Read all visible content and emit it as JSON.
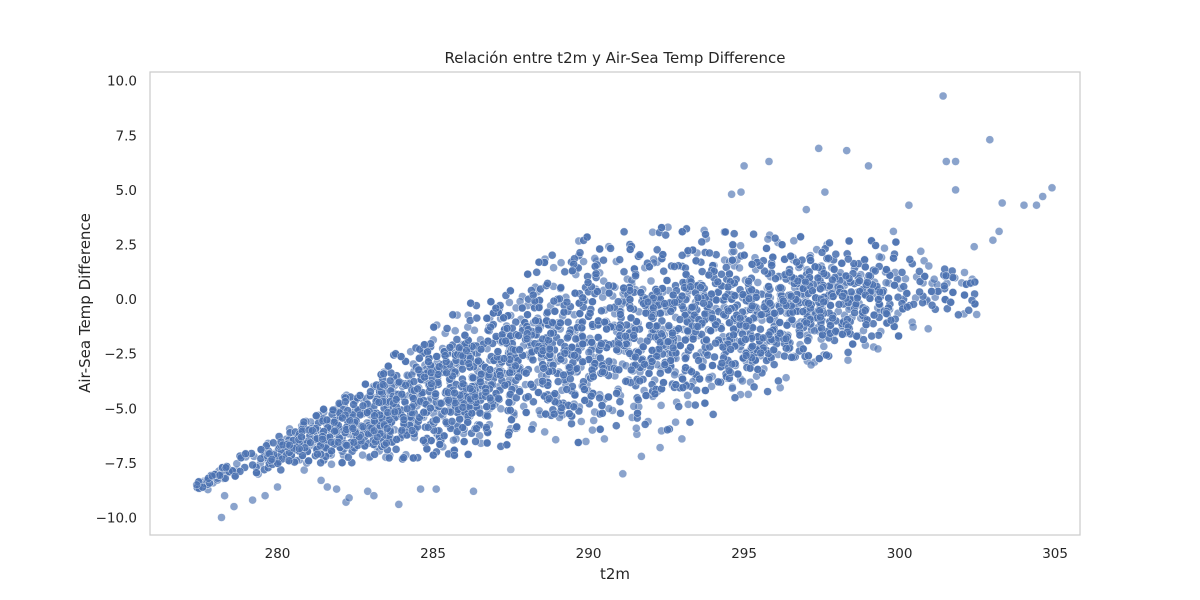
{
  "chart_data": {
    "type": "scatter",
    "title": "Relación entre t2m y Air-Sea Temp Difference",
    "xlabel": "t2m",
    "ylabel": "Air-Sea Temp Difference",
    "xlim": [
      275.9,
      305.8
    ],
    "ylim": [
      -10.8,
      10.4
    ],
    "xticks": [
      280,
      285,
      290,
      295,
      300,
      305
    ],
    "xtick_labels": [
      "280",
      "285",
      "290",
      "295",
      "300",
      "305"
    ],
    "yticks": [
      -10,
      -7.5,
      -5,
      -2.5,
      0,
      2.5,
      5,
      7.5,
      10
    ],
    "ytick_labels": [
      "−10.0",
      "−7.5",
      "−5.0",
      "−2.5",
      "0.0",
      "2.5",
      "5.0",
      "7.5",
      "10.0"
    ],
    "grid": false,
    "marker_color": "#4c72b0",
    "marker_alpha": 0.65,
    "marker_edgecolor": "#ffffff",
    "band": {
      "x": [
        277.4,
        280,
        282.5,
        285,
        287.5,
        290,
        292.5,
        295,
        297.5,
        300,
        302.5
      ],
      "upper": [
        -8.3,
        -6.2,
        -4.0,
        -1.5,
        0.8,
        2.7,
        3.1,
        2.8,
        2.6,
        2.4,
        1.8
      ],
      "lower": [
        -8.8,
        -7.8,
        -7.3,
        -7.0,
        -6.8,
        -6.3,
        -5.8,
        -4.6,
        -3.0,
        -1.8,
        -0.6
      ]
    },
    "outliers": [
      {
        "x": 277.4,
        "y": -8.5
      },
      {
        "x": 277.9,
        "y": -8.1
      },
      {
        "x": 278.2,
        "y": -10.0
      },
      {
        "x": 278.3,
        "y": -9.0
      },
      {
        "x": 278.6,
        "y": -9.5
      },
      {
        "x": 279.2,
        "y": -9.2
      },
      {
        "x": 279.6,
        "y": -9.0
      },
      {
        "x": 280.0,
        "y": -8.6
      },
      {
        "x": 281.4,
        "y": -8.3
      },
      {
        "x": 281.6,
        "y": -8.6
      },
      {
        "x": 281.9,
        "y": -8.7
      },
      {
        "x": 282.2,
        "y": -9.3
      },
      {
        "x": 282.3,
        "y": -9.1
      },
      {
        "x": 282.9,
        "y": -8.8
      },
      {
        "x": 283.1,
        "y": -9.0
      },
      {
        "x": 283.9,
        "y": -9.4
      },
      {
        "x": 284.6,
        "y": -8.7
      },
      {
        "x": 285.1,
        "y": -8.7
      },
      {
        "x": 286.3,
        "y": -8.8
      },
      {
        "x": 287.5,
        "y": -7.8
      },
      {
        "x": 291.1,
        "y": -8.0
      },
      {
        "x": 291.7,
        "y": -7.2
      },
      {
        "x": 292.3,
        "y": -6.8
      },
      {
        "x": 293.0,
        "y": -6.4
      },
      {
        "x": 295.0,
        "y": 6.1
      },
      {
        "x": 295.8,
        "y": 6.3
      },
      {
        "x": 294.6,
        "y": 4.8
      },
      {
        "x": 294.9,
        "y": 4.9
      },
      {
        "x": 297.0,
        "y": 4.1
      },
      {
        "x": 297.4,
        "y": 6.9
      },
      {
        "x": 297.6,
        "y": 4.9
      },
      {
        "x": 298.3,
        "y": 6.8
      },
      {
        "x": 299.0,
        "y": 6.1
      },
      {
        "x": 301.4,
        "y": 9.3
      },
      {
        "x": 301.5,
        "y": 6.3
      },
      {
        "x": 301.8,
        "y": 6.3
      },
      {
        "x": 301.8,
        "y": 5.0
      },
      {
        "x": 302.9,
        "y": 7.3
      },
      {
        "x": 303.3,
        "y": 4.4
      },
      {
        "x": 303.2,
        "y": 3.1
      },
      {
        "x": 304.0,
        "y": 4.3
      },
      {
        "x": 304.4,
        "y": 4.3
      },
      {
        "x": 304.6,
        "y": 4.7
      },
      {
        "x": 304.9,
        "y": 5.1
      },
      {
        "x": 303.0,
        "y": 2.7
      },
      {
        "x": 302.4,
        "y": 2.4
      },
      {
        "x": 300.3,
        "y": 4.3
      },
      {
        "x": 299.8,
        "y": 3.1
      }
    ]
  }
}
